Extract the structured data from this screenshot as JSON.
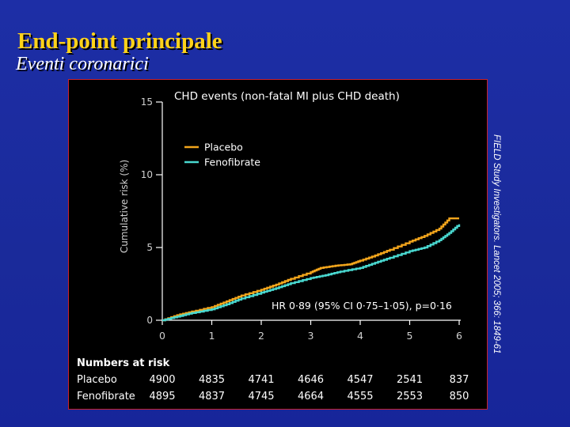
{
  "slide": {
    "title": "End-point principale",
    "subtitle": "Eventi coronarici",
    "citation": "FIELD Study Investigators. Lancet 2005; 366: 1849-61"
  },
  "chart_data": {
    "type": "line",
    "title": "CHD events (non-fatal MI plus CHD death)",
    "ylabel": "Cumulative risk (%)",
    "xlabel": "",
    "xlim": [
      0,
      6
    ],
    "ylim": [
      0,
      15
    ],
    "x_ticks": [
      0,
      1,
      2,
      3,
      4,
      5,
      6
    ],
    "y_ticks": [
      0,
      5,
      10,
      15
    ],
    "grid": false,
    "legend_position": "top-left",
    "annotation": "HR 0·89 (95% CI 0·75–1·05), p=0·16",
    "series": [
      {
        "name": "Placebo",
        "color": "#f2a51c",
        "x": [
          0,
          0.3,
          0.6,
          1.0,
          1.3,
          1.6,
          2.0,
          2.3,
          2.6,
          3.0,
          3.2,
          3.5,
          3.8,
          4.0,
          4.3,
          4.6,
          5.0,
          5.3,
          5.6,
          5.8,
          6.0
        ],
        "values": [
          0,
          0.35,
          0.6,
          0.9,
          1.3,
          1.7,
          2.1,
          2.45,
          2.85,
          3.3,
          3.6,
          3.75,
          3.85,
          4.1,
          4.45,
          4.85,
          5.4,
          5.8,
          6.3,
          7.0,
          7.0
        ]
      },
      {
        "name": "Fenofibrate",
        "color": "#49d8d0",
        "x": [
          0,
          0.3,
          0.6,
          1.0,
          1.3,
          1.6,
          2.0,
          2.3,
          2.6,
          3.0,
          3.3,
          3.6,
          4.0,
          4.3,
          4.6,
          5.0,
          5.3,
          5.6,
          5.8,
          6.0
        ],
        "values": [
          0,
          0.25,
          0.5,
          0.75,
          1.1,
          1.5,
          1.9,
          2.2,
          2.55,
          2.9,
          3.1,
          3.35,
          3.6,
          3.95,
          4.3,
          4.75,
          5.0,
          5.5,
          6.0,
          6.6
        ]
      }
    ],
    "numbers_at_risk": {
      "heading": "Numbers at risk",
      "rows": [
        {
          "label": "Placebo",
          "values": [
            "4900",
            "4835",
            "4741",
            "4646",
            "4547",
            "2541",
            "837"
          ]
        },
        {
          "label": "Fenofibrate",
          "values": [
            "4895",
            "4837",
            "4745",
            "4664",
            "4555",
            "2553",
            "850"
          ]
        }
      ]
    }
  }
}
